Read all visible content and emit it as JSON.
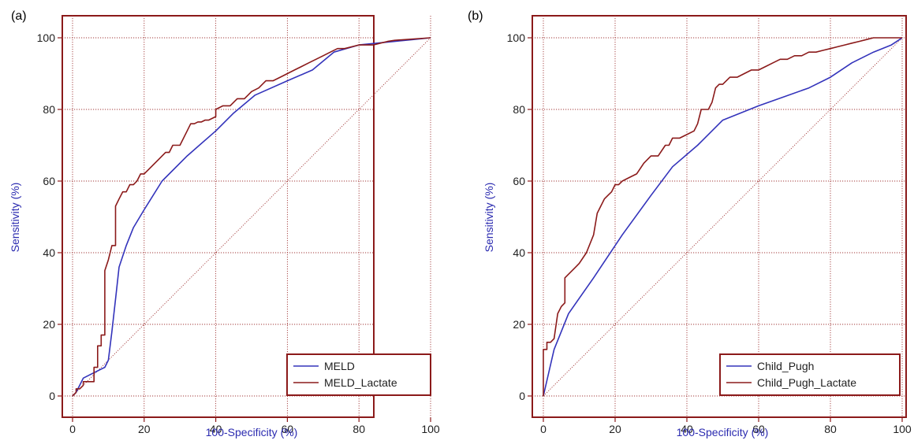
{
  "chart_data": [
    {
      "type": "line",
      "panel_label": "(a)",
      "xlabel": "100-Specificity (%)",
      "ylabel": "Sensitivity (%)",
      "xlim": [
        0,
        100
      ],
      "ylim": [
        0,
        100
      ],
      "x_ticks": [
        "0",
        "20",
        "40",
        "60",
        "80",
        "100"
      ],
      "y_ticks": [
        "0",
        "20",
        "40",
        "60",
        "80",
        "100"
      ],
      "grid": true,
      "reference_line": "diagonal",
      "legend_position": "bottom-right",
      "series": [
        {
          "name": "MELD",
          "color": "#3333bb",
          "x": [
            0,
            1,
            2,
            3,
            5,
            7,
            9,
            10,
            11,
            12,
            13,
            15,
            17,
            20,
            25,
            32,
            40,
            45,
            51,
            60,
            67,
            73,
            80,
            85,
            90,
            95,
            100
          ],
          "y": [
            0,
            1,
            3,
            5,
            6,
            7,
            8,
            10,
            18,
            27,
            36,
            42,
            47,
            52,
            60,
            67,
            74,
            79,
            84,
            88,
            91,
            96,
            98,
            98.5,
            99,
            99.5,
            100
          ]
        },
        {
          "name": "MELD_Lactate",
          "color": "#8b1a1a",
          "x": [
            0,
            1,
            1,
            2,
            3,
            3,
            4,
            5,
            6,
            6,
            7,
            7,
            8,
            8,
            9,
            9,
            10,
            11,
            12,
            12,
            13,
            14,
            15,
            16,
            17,
            18,
            19,
            20,
            21,
            22,
            24,
            26,
            27,
            28,
            30,
            32,
            33,
            34,
            35,
            36,
            37,
            38,
            40,
            40,
            42,
            44,
            46,
            48,
            50,
            52,
            54,
            56,
            58,
            60,
            62,
            64,
            66,
            68,
            70,
            72,
            74,
            76,
            78,
            80,
            82,
            84,
            86,
            88,
            90,
            100
          ],
          "y": [
            0,
            1,
            2,
            2,
            3,
            4,
            4,
            4,
            4,
            8,
            8,
            14,
            14,
            17,
            17,
            35,
            38,
            42,
            42,
            53,
            55,
            57,
            57,
            59,
            59,
            60,
            62,
            62,
            63,
            64,
            66,
            68,
            68,
            70,
            70,
            74,
            76,
            76,
            76.5,
            76.5,
            77,
            77,
            78,
            80,
            81,
            81,
            83,
            83,
            85,
            86,
            88,
            88,
            89,
            90,
            91,
            92,
            93,
            94,
            95,
            96,
            97,
            97,
            97.5,
            98,
            98,
            98,
            98.5,
            99,
            99.3,
            100
          ]
        }
      ]
    },
    {
      "type": "line",
      "panel_label": "(b)",
      "xlabel": "100-Specificity (%)",
      "ylabel": "Sensitivity (%)",
      "xlim": [
        0,
        100
      ],
      "ylim": [
        0,
        100
      ],
      "x_ticks": [
        "0",
        "20",
        "40",
        "60",
        "80",
        "100"
      ],
      "y_ticks": [
        "0",
        "20",
        "40",
        "60",
        "80",
        "100"
      ],
      "grid": true,
      "reference_line": "diagonal",
      "legend_position": "bottom-right",
      "series": [
        {
          "name": "Child_Pugh",
          "color": "#3333bb",
          "x": [
            0,
            3,
            7,
            14,
            22,
            30,
            36,
            43,
            50,
            60,
            74,
            80,
            86,
            92,
            97,
            100
          ],
          "y": [
            0,
            13,
            23,
            33,
            45,
            56,
            64,
            70,
            77,
            81,
            86,
            89,
            93,
            96,
            98,
            100
          ]
        },
        {
          "name": "Child_Pugh_Lactate",
          "color": "#8b1a1a",
          "x": [
            0,
            0,
            1,
            1,
            2,
            3,
            3,
            4,
            5,
            6,
            6,
            7,
            8,
            9,
            10,
            12,
            14,
            15,
            16,
            17,
            18,
            19,
            20,
            21,
            22,
            24,
            26,
            28,
            30,
            32,
            34,
            35,
            36,
            38,
            40,
            42,
            43,
            44,
            46,
            47,
            48,
            49,
            50,
            52,
            54,
            56,
            58,
            60,
            62,
            64,
            66,
            68,
            70,
            72,
            74,
            76,
            78,
            80,
            82,
            84,
            86,
            88,
            90,
            92,
            100
          ],
          "y": [
            0,
            13,
            13,
            15,
            15,
            16,
            16,
            23,
            25,
            26,
            33,
            34,
            35,
            36,
            37,
            40,
            45,
            51,
            53,
            55,
            56,
            57,
            59,
            59,
            60,
            61,
            62,
            65,
            67,
            67,
            70,
            70,
            72,
            72,
            73,
            74,
            76,
            80,
            80,
            82,
            86,
            87,
            87,
            89,
            89,
            90,
            91,
            91,
            92,
            93,
            94,
            94,
            95,
            95,
            96,
            96,
            96.5,
            97,
            97.5,
            98,
            98.5,
            99,
            99.5,
            100,
            100
          ]
        }
      ]
    }
  ]
}
